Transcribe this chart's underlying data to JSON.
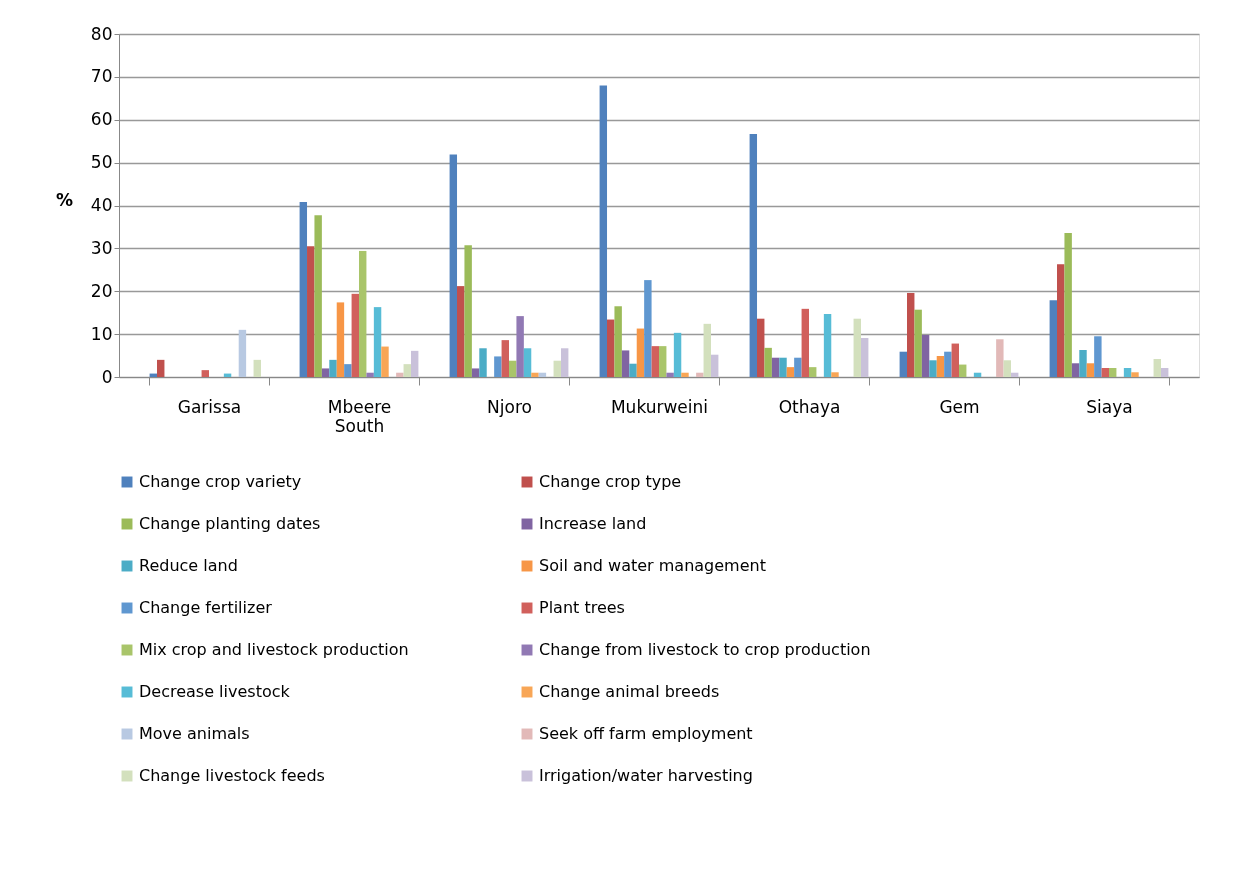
{
  "chart_data": {
    "type": "bar",
    "ylabel": "%",
    "categories": [
      "Garissa",
      "Mbeere South",
      "Njoro",
      "Mukurweini",
      "Othaya",
      "Gem",
      "Siaya"
    ],
    "ylim": [
      0,
      80
    ],
    "yticks": [
      0,
      10,
      20,
      30,
      40,
      50,
      60,
      70,
      80
    ],
    "grid": "y",
    "legend": "bottom",
    "series": [
      {
        "name": "Change crop variety",
        "color": "#4f81bd",
        "values": [
          0.8,
          40.8,
          51.9,
          68,
          56.7,
          5.9,
          17.9
        ]
      },
      {
        "name": "Change crop type",
        "color": "#c0504d",
        "values": [
          4,
          30.5,
          21.2,
          13.4,
          13.6,
          19.6,
          26.3
        ]
      },
      {
        "name": "Change planting dates",
        "color": "#9bbb59",
        "values": [
          0,
          37.7,
          30.7,
          16.5,
          6.8,
          15.7,
          33.6
        ]
      },
      {
        "name": "Increase land",
        "color": "#8064a2",
        "values": [
          0,
          2,
          2,
          6.2,
          4.5,
          9.8,
          3.2
        ]
      },
      {
        "name": "Reduce land",
        "color": "#4bacc6",
        "values": [
          0,
          4,
          6.7,
          3.1,
          4.5,
          3.9,
          6.3
        ]
      },
      {
        "name": "Soil and water management",
        "color": "#f79646",
        "values": [
          0,
          17.4,
          0,
          11.3,
          2.3,
          4.9,
          3.2
        ]
      },
      {
        "name": "Change fertilizer",
        "color": "#5f97d0",
        "values": [
          0,
          3,
          4.8,
          22.6,
          4.5,
          5.9,
          9.5
        ]
      },
      {
        "name": "Plant trees",
        "color": "#d1605c",
        "values": [
          1.6,
          19.4,
          8.6,
          7.2,
          15.9,
          7.8,
          2.1
        ]
      },
      {
        "name": "Mix crop and livestock production",
        "color": "#a9c56a",
        "values": [
          0,
          29.4,
          3.8,
          7.2,
          2.3,
          2.9,
          2.1
        ]
      },
      {
        "name": "Change from livestock to crop production",
        "color": "#9179b4",
        "values": [
          0,
          1,
          14.2,
          1,
          0,
          0,
          0
        ]
      },
      {
        "name": "Decrease livestock",
        "color": "#57bcd6",
        "values": [
          0.8,
          16.3,
          6.7,
          10.3,
          14.7,
          1,
          2.1
        ]
      },
      {
        "name": "Change animal breeds",
        "color": "#f8a656",
        "values": [
          0,
          7.1,
          1,
          1,
          1.1,
          0,
          1.1
        ]
      },
      {
        "name": "Move animals",
        "color": "#b8c9e2",
        "values": [
          11,
          0,
          1,
          0,
          0,
          0,
          0
        ]
      },
      {
        "name": "Seek off farm employment",
        "color": "#e2b9b8",
        "values": [
          0,
          1,
          0,
          1,
          0,
          8.8,
          0
        ]
      },
      {
        "name": "Change livestock feeds",
        "color": "#d3e0bd",
        "values": [
          4,
          3,
          3.8,
          12.4,
          13.6,
          3.9,
          4.2
        ]
      },
      {
        "name": "Irrigation/water harvesting",
        "color": "#c9c1da",
        "values": [
          0,
          6.1,
          6.7,
          5.2,
          9.1,
          1,
          2.1
        ]
      }
    ]
  }
}
